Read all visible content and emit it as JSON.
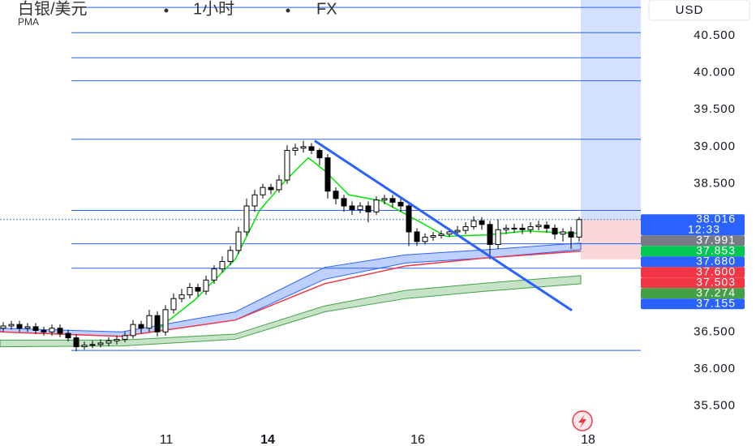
{
  "chart_data": {
    "type": "candlestick",
    "symbol": "白银/美元",
    "interval": "1小时",
    "exchange": "FX",
    "indicator": "PMA",
    "currency": "USD",
    "up_color": "#ffffff",
    "down_color": "#000000",
    "ylim": [
      34.96,
      40.98
    ],
    "yticks": [
      {
        "value": 40.5,
        "label": "40.500"
      },
      {
        "value": 40,
        "label": "40.000"
      },
      {
        "value": 39.5,
        "label": "39.500"
      },
      {
        "value": 39,
        "label": "39.000"
      },
      {
        "value": 38.5,
        "label": "38.500"
      },
      {
        "value": 36.5,
        "label": "36.500"
      },
      {
        "value": 36,
        "label": "36.000"
      },
      {
        "value": 35.5,
        "label": "35.500"
      }
    ],
    "xlim": [
      -0.4,
      78.6
    ],
    "xticks": [
      {
        "value": 20.1,
        "label": "11"
      },
      {
        "value": 32.6,
        "label": "14",
        "bold": true
      },
      {
        "value": 51.1,
        "label": "16"
      },
      {
        "value": 72.1,
        "label": "18"
      }
    ],
    "open": [
      36.55,
      36.58,
      36.6,
      36.55,
      36.57,
      36.52,
      36.5,
      36.55,
      36.48,
      36.42,
      36.3,
      36.32,
      36.33,
      36.35,
      36.38,
      36.4,
      36.45,
      36.6,
      36.55,
      36.72,
      36.5,
      36.8,
      36.95,
      37.0,
      37.1,
      37.05,
      37.2,
      37.35,
      37.45,
      37.6,
      37.85,
      38.2,
      38.35,
      38.45,
      38.42,
      38.55,
      38.95,
      38.98,
      39.0,
      38.95,
      38.85,
      38.4,
      38.3,
      38.2,
      38.15,
      38.2,
      38.12,
      38.28,
      38.3,
      38.25,
      38.2,
      37.85,
      37.72,
      37.78,
      37.8,
      37.82,
      37.85,
      37.87,
      37.92,
      38.0,
      37.95,
      37.68,
      37.88,
      37.9,
      37.9,
      37.88,
      37.92,
      37.94,
      37.9,
      37.82,
      37.85,
      37.78
    ],
    "high": [
      36.63,
      36.65,
      36.65,
      36.62,
      36.62,
      36.57,
      36.6,
      36.6,
      36.53,
      36.47,
      36.37,
      36.38,
      36.4,
      36.43,
      36.45,
      36.5,
      36.66,
      36.65,
      36.8,
      36.78,
      36.86,
      37.02,
      37.08,
      37.16,
      37.15,
      37.26,
      37.4,
      37.52,
      37.66,
      37.92,
      38.3,
      38.42,
      38.5,
      38.5,
      38.62,
      39.02,
      39.04,
      39.08,
      39.05,
      38.98,
      38.9,
      38.45,
      38.35,
      38.26,
      38.25,
      38.26,
      38.33,
      38.35,
      38.35,
      38.3,
      38.25,
      37.9,
      37.83,
      37.85,
      37.87,
      37.9,
      37.93,
      37.98,
      38.06,
      38.05,
      38.0,
      38.02,
      37.95,
      37.96,
      37.96,
      37.98,
      38.0,
      37.99,
      37.95,
      37.9,
      37.92,
      38.05
    ],
    "low": [
      36.5,
      36.53,
      36.5,
      36.5,
      36.47,
      36.45,
      36.45,
      36.43,
      36.37,
      36.24,
      36.26,
      36.28,
      36.29,
      36.31,
      36.33,
      36.36,
      36.41,
      36.48,
      36.5,
      36.44,
      36.45,
      36.75,
      36.9,
      36.95,
      36.98,
      37.0,
      37.15,
      37.3,
      37.4,
      37.55,
      37.8,
      38.12,
      38.3,
      38.36,
      38.38,
      38.5,
      38.88,
      38.92,
      38.9,
      38.75,
      38.3,
      38.22,
      38.12,
      38.08,
      38.1,
      37.98,
      38.08,
      38.22,
      38.18,
      38.12,
      37.66,
      37.66,
      37.68,
      37.73,
      37.76,
      37.78,
      37.8,
      37.82,
      37.88,
      37.88,
      37.48,
      37.62,
      37.82,
      37.84,
      37.82,
      37.83,
      37.87,
      37.84,
      37.75,
      37.72,
      37.62,
      37.72
    ],
    "close": [
      36.58,
      36.6,
      36.55,
      36.57,
      36.52,
      36.5,
      36.55,
      36.48,
      36.42,
      36.3,
      36.32,
      36.33,
      36.35,
      36.38,
      36.4,
      36.45,
      36.6,
      36.55,
      36.72,
      36.5,
      36.8,
      36.95,
      37.0,
      37.1,
      37.05,
      37.2,
      37.35,
      37.45,
      37.6,
      37.85,
      38.2,
      38.35,
      38.45,
      38.42,
      38.55,
      38.95,
      38.98,
      39.0,
      38.95,
      38.85,
      38.4,
      38.3,
      38.2,
      38.15,
      38.2,
      38.12,
      38.28,
      38.3,
      38.25,
      38.2,
      37.85,
      37.72,
      37.78,
      37.8,
      37.82,
      37.85,
      37.87,
      37.92,
      38.0,
      37.95,
      37.68,
      37.88,
      37.9,
      37.9,
      37.88,
      37.92,
      37.94,
      37.9,
      37.82,
      37.85,
      37.78,
      38.016
    ],
    "bands": [
      {
        "color": "#2962ff",
        "x": [
          -0.4,
          14.6,
          28.6,
          39.6,
          49.6,
          59.6,
          71.2
        ],
        "upper": [
          36.55,
          36.5,
          36.77,
          37.37,
          37.54,
          37.61,
          37.7
        ],
        "lower": [
          36.5,
          36.44,
          36.66,
          37.21,
          37.43,
          37.5,
          37.61
        ]
      },
      {
        "color": "#43a047",
        "x": [
          -0.4,
          14.6,
          28.6,
          39.6,
          49.6,
          59.6,
          71.2
        ],
        "upper": [
          36.39,
          36.39,
          36.47,
          36.85,
          37.06,
          37.16,
          37.26
        ],
        "lower": [
          36.3,
          36.31,
          36.4,
          36.77,
          36.95,
          37.05,
          37.15
        ]
      }
    ],
    "lines": [
      {
        "color": "#f23645",
        "x": [
          -0.4,
          14.6,
          28.6,
          39.6,
          49.6,
          59.6,
          71.2
        ],
        "values": [
          36.5,
          36.44,
          36.66,
          37.15,
          37.39,
          37.5,
          37.59
        ]
      },
      {
        "color": "#00e600",
        "x": [
          18.6,
          23.6,
          28.6,
          31.6,
          34.6,
          37.6,
          39.6,
          42.6,
          46.6,
          50.6,
          54.6,
          59.6,
          64.6,
          70.8
        ],
        "values": [
          36.5,
          36.93,
          37.48,
          38.14,
          38.52,
          38.85,
          38.68,
          38.35,
          38.27,
          38.03,
          37.79,
          37.81,
          37.86,
          37.83
        ]
      }
    ],
    "hlines": [
      40.88,
      40.54,
      40.2,
      39.89,
      39.1,
      38.14,
      37.69,
      37.36,
      36.25
    ],
    "hline_color": "#2962ff",
    "trendline": {
      "color": "#2962ff",
      "x": [
        38.4,
        70.1
      ],
      "values": [
        39.08,
        36.79
      ]
    },
    "position": {
      "x": 71.2,
      "target": 41.0,
      "stop": 37.48
    },
    "countdown": "12:33",
    "price_labels": [
      {
        "value": 38.016,
        "label": "38.016",
        "color": "#2962ff"
      },
      {
        "value": 37.991,
        "label": "37.991",
        "color": "#787b86"
      },
      {
        "value": 37.853,
        "label": "37.853",
        "color": "#00c853"
      },
      {
        "value": 37.68,
        "label": "37.680",
        "color": "#2962ff"
      },
      {
        "value": 37.6,
        "label": "37.600",
        "color": "#f23645"
      },
      {
        "value": 37.503,
        "label": "37.503",
        "color": "#f23645"
      },
      {
        "value": 37.274,
        "label": "37.274",
        "color": "#43a047"
      },
      {
        "value": 37.155,
        "label": "37.155",
        "color": "#2962ff"
      }
    ]
  }
}
